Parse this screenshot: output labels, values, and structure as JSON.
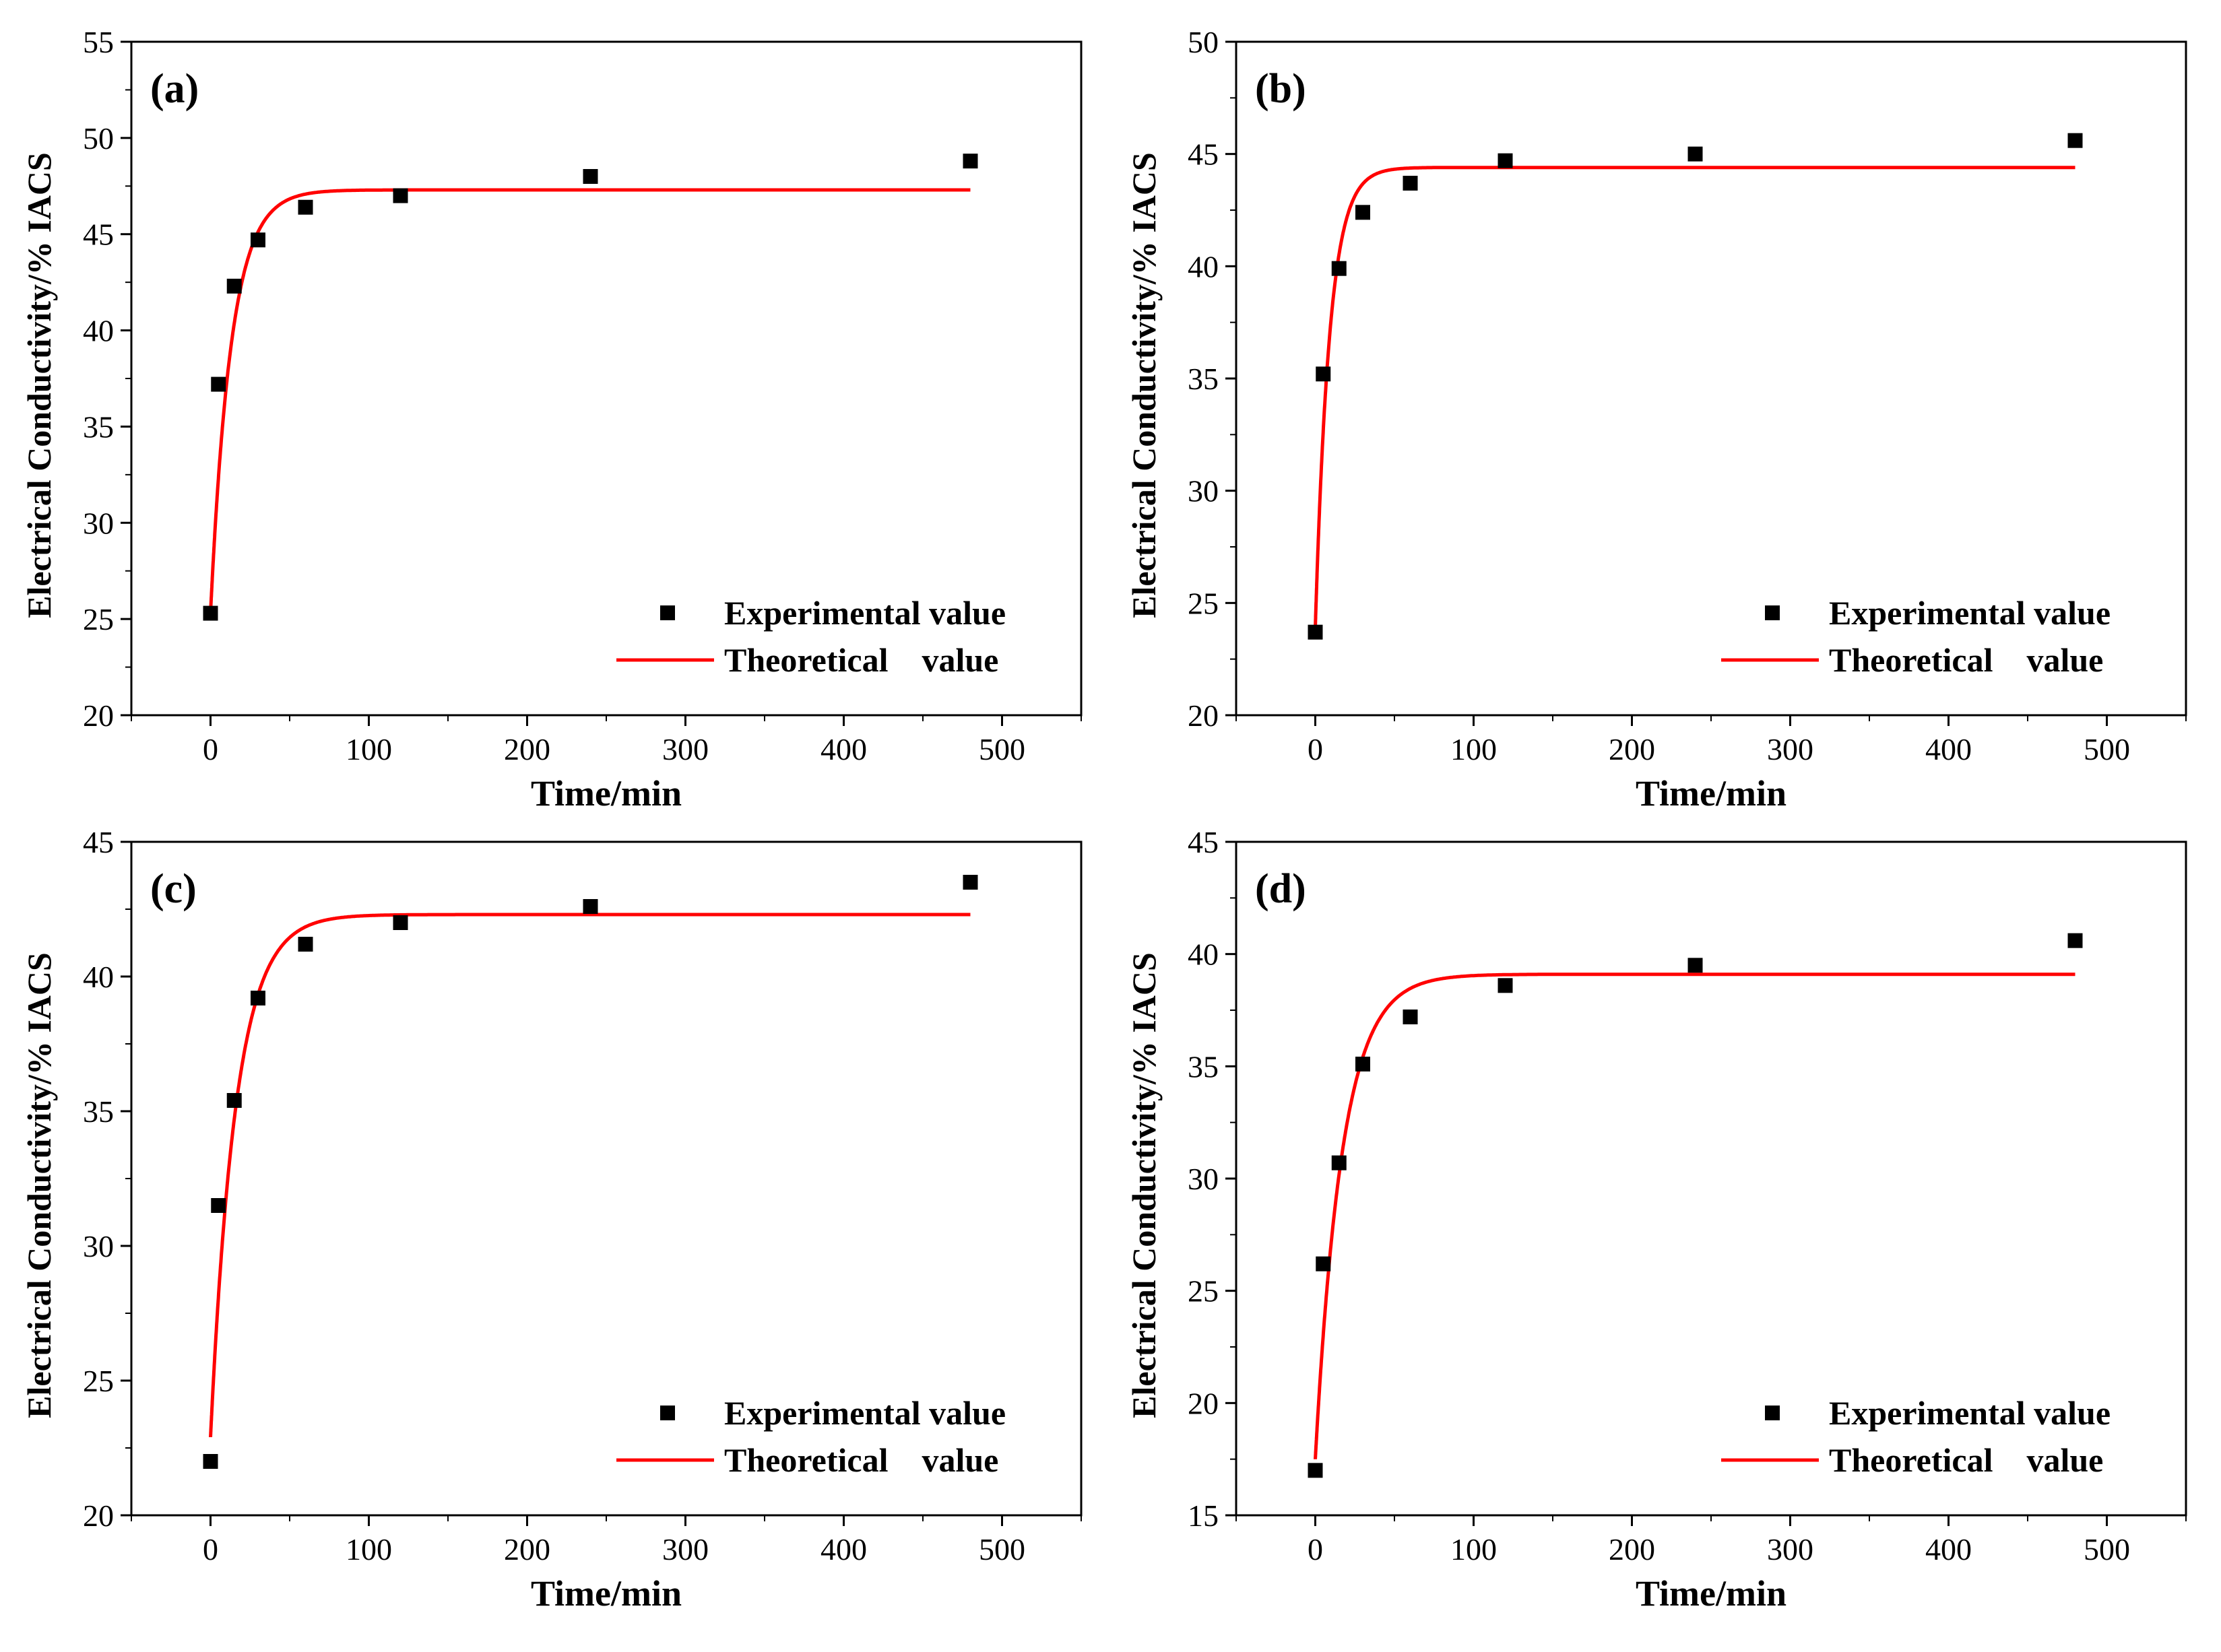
{
  "chart_data": [
    {
      "type": "scatter",
      "panel_label": "(a)",
      "xlabel": "Time/min",
      "ylabel": "Electrical Conductivity/% IACS",
      "xlim": [
        -50,
        550
      ],
      "ylim": [
        20,
        55
      ],
      "x_ticks": [
        0,
        100,
        200,
        300,
        400,
        500
      ],
      "y_ticks": [
        20,
        25,
        30,
        35,
        40,
        45,
        50,
        55
      ],
      "legend": {
        "position": "bottom-right",
        "experimental": "Experimental value",
        "theoretical": "Theoretical    value"
      },
      "series": [
        {
          "name": "Experimental value",
          "kind": "scatter",
          "color": "#000000",
          "x": [
            0,
            5,
            15,
            30,
            60,
            120,
            240,
            480
          ],
          "y": [
            25.3,
            37.2,
            42.3,
            44.7,
            46.4,
            47.0,
            48.0,
            48.8
          ]
        },
        {
          "name": "Theoretical value",
          "kind": "line",
          "color": "#ff0000",
          "model": {
            "y0": 25.3,
            "y_inf": 47.3,
            "tau": 13,
            "x_start": 0,
            "x_end": 480
          }
        }
      ]
    },
    {
      "type": "scatter",
      "panel_label": "(b)",
      "xlabel": "Time/min",
      "ylabel": "Electrical Conductivity/% IACS",
      "xlim": [
        -50,
        550
      ],
      "ylim": [
        20,
        50
      ],
      "x_ticks": [
        0,
        100,
        200,
        300,
        400,
        500
      ],
      "y_ticks": [
        20,
        25,
        30,
        35,
        40,
        45,
        50
      ],
      "legend": {
        "position": "bottom-right",
        "experimental": "Experimental value",
        "theoretical": "Theoretical    value"
      },
      "series": [
        {
          "name": "Experimental value",
          "kind": "scatter",
          "color": "#000000",
          "x": [
            0,
            5,
            15,
            30,
            60,
            120,
            240,
            480
          ],
          "y": [
            23.7,
            35.2,
            39.9,
            42.4,
            43.7,
            44.7,
            45.0,
            45.6
          ]
        },
        {
          "name": "Theoretical value",
          "kind": "line",
          "color": "#ff0000",
          "model": {
            "y0": 23.9,
            "y_inf": 44.4,
            "tau": 9,
            "x_start": 0,
            "x_end": 480
          }
        }
      ]
    },
    {
      "type": "scatter",
      "panel_label": "(c)",
      "xlabel": "Time/min",
      "ylabel": "Electrical Conductivity/% IACS",
      "xlim": [
        -50,
        550
      ],
      "ylim": [
        20,
        45
      ],
      "x_ticks": [
        0,
        100,
        200,
        300,
        400,
        500
      ],
      "y_ticks": [
        20,
        25,
        30,
        35,
        40,
        45
      ],
      "legend": {
        "position": "bottom-right",
        "experimental": "Experimental value",
        "theoretical": "Theoretical    value"
      },
      "series": [
        {
          "name": "Experimental value",
          "kind": "scatter",
          "color": "#000000",
          "x": [
            0,
            5,
            15,
            30,
            60,
            120,
            240,
            480
          ],
          "y": [
            22.0,
            31.5,
            35.4,
            39.2,
            41.2,
            42.0,
            42.6,
            43.5
          ]
        },
        {
          "name": "Theoretical value",
          "kind": "line",
          "color": "#ff0000",
          "model": {
            "y0": 22.9,
            "y_inf": 42.3,
            "tau": 16,
            "x_start": 0,
            "x_end": 480
          }
        }
      ]
    },
    {
      "type": "scatter",
      "panel_label": "(d)",
      "xlabel": "Time/min",
      "ylabel": "Electrical Conductivity/% IACS",
      "xlim": [
        -50,
        550
      ],
      "ylim": [
        15,
        45
      ],
      "x_ticks": [
        0,
        100,
        200,
        300,
        400,
        500
      ],
      "y_ticks": [
        15,
        20,
        25,
        30,
        35,
        40,
        45
      ],
      "legend": {
        "position": "bottom-right",
        "experimental": "Experimental value",
        "theoretical": "Theoretical    value"
      },
      "series": [
        {
          "name": "Experimental value",
          "kind": "scatter",
          "color": "#000000",
          "x": [
            0,
            5,
            15,
            30,
            60,
            120,
            240,
            480
          ],
          "y": [
            17.0,
            26.2,
            30.7,
            35.1,
            37.2,
            38.6,
            39.5,
            40.6
          ]
        },
        {
          "name": "Theoretical value",
          "kind": "line",
          "color": "#ff0000",
          "model": {
            "y0": 17.5,
            "y_inf": 39.1,
            "tau": 17,
            "x_start": 0,
            "x_end": 480
          }
        }
      ]
    }
  ]
}
